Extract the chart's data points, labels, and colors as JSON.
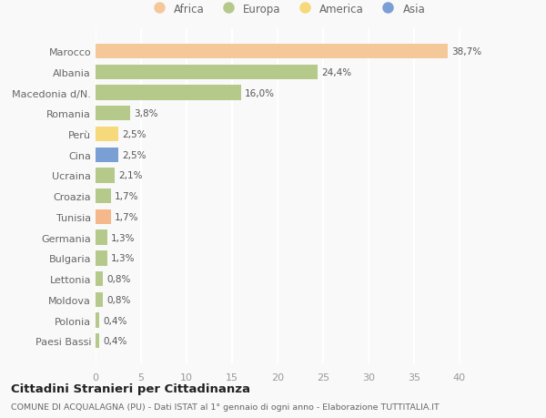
{
  "countries": [
    "Marocco",
    "Albania",
    "Macedonia d/N.",
    "Romania",
    "Perù",
    "Cina",
    "Ucraina",
    "Croazia",
    "Tunisia",
    "Germania",
    "Bulgaria",
    "Lettonia",
    "Moldova",
    "Polonia",
    "Paesi Bassi"
  ],
  "values": [
    38.7,
    24.4,
    16.0,
    3.8,
    2.5,
    2.5,
    2.1,
    1.7,
    1.7,
    1.3,
    1.3,
    0.8,
    0.8,
    0.4,
    0.4
  ],
  "colors": [
    "#f5c89a",
    "#b5c98a",
    "#b5c98a",
    "#b5c98a",
    "#f5d97a",
    "#7a9fd4",
    "#b5c98a",
    "#b5c98a",
    "#f5b88a",
    "#b5c98a",
    "#b5c98a",
    "#b5c98a",
    "#b5c98a",
    "#b5c98a",
    "#b5c98a"
  ],
  "labels": [
    "38,7%",
    "24,4%",
    "16,0%",
    "3,8%",
    "2,5%",
    "2,5%",
    "2,1%",
    "1,7%",
    "1,7%",
    "1,3%",
    "1,3%",
    "0,8%",
    "0,8%",
    "0,4%",
    "0,4%"
  ],
  "legend_labels": [
    "Africa",
    "Europa",
    "America",
    "Asia"
  ],
  "legend_colors": [
    "#f5c89a",
    "#b5c98a",
    "#f5d97a",
    "#7a9fd4"
  ],
  "xlim": [
    0,
    42
  ],
  "xticks": [
    0,
    5,
    10,
    15,
    20,
    25,
    30,
    35,
    40
  ],
  "title": "Cittadini Stranieri per Cittadinanza",
  "subtitle": "COMUNE DI ACQUALAGNA (PU) - Dati ISTAT al 1° gennaio di ogni anno - Elaborazione TUTTITALIA.IT",
  "bg_color": "#f9f9f9",
  "grid_color": "#ffffff"
}
